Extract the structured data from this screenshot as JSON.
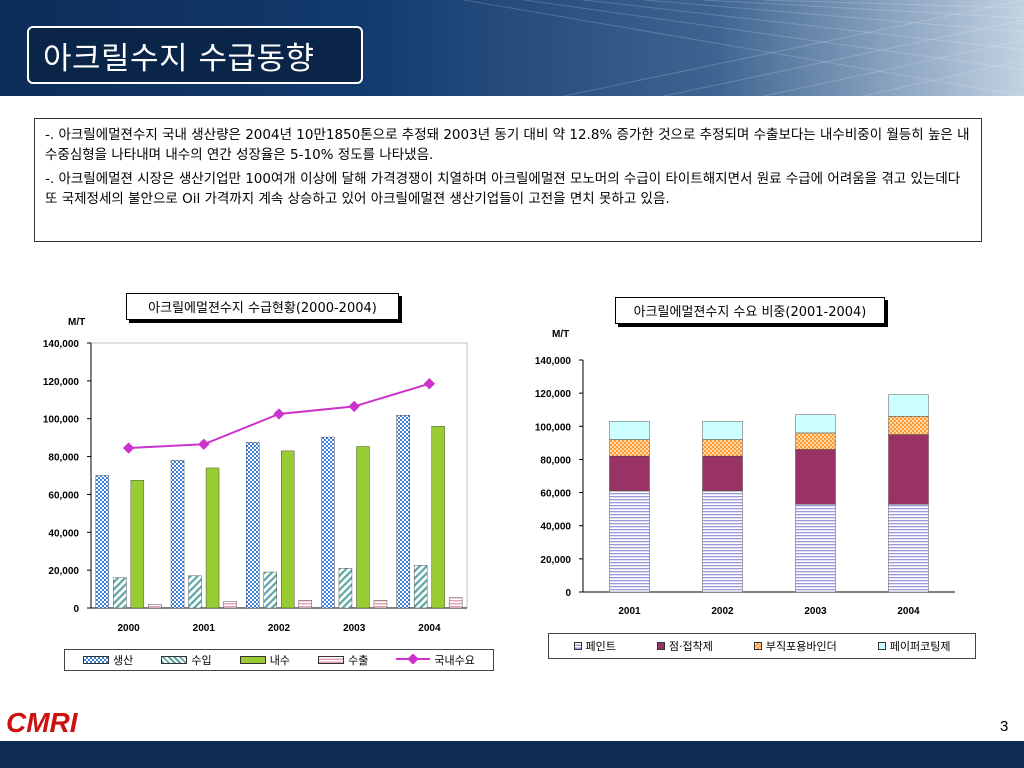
{
  "title": "아크릴수지 수급동향",
  "description": [
    "-. 아크릴에멀젼수지 국내 생산량은 2004년 10만1850톤으로 추정돼 2003년 동기 대비 약 12.8% 증가한 것으로 추정되며 수출보다는 내수비중이 월등히 높은 내수중심형을 나타내며  내수의 연간 성장율은 5-10% 정도를 나타냈음.",
    "-. 아크릴에멀젼 시장은 생산기업만 100여개 이상에 달해 가격경쟁이 치열하며 아크릴에멀젼 모노머의 수급이 타이트해지면서 원료 수급에 어려움을 겪고 있는데다 또 국제정세의 불안으로 Oil 가격까지 계속 상승하고 있어 아크릴에멀젼 생산기업들이 고전을 면치 못하고 있음."
  ],
  "logo_text": "CMRI",
  "page_number": "3",
  "chart_data": [
    {
      "type": "bar",
      "title": "아크릴에멀젼수지 수급현황(2000-2004)",
      "ylabel": "M/T",
      "ylim": [
        0,
        140000
      ],
      "yticks": [
        "0",
        "20,000",
        "40,000",
        "60,000",
        "80,000",
        "100,000",
        "120,000",
        "140,000"
      ],
      "categories": [
        "2000",
        "2001",
        "2002",
        "2003",
        "2004"
      ],
      "series": [
        {
          "name": "생산",
          "kind": "bar",
          "color": "#3d7fd4",
          "values": [
            70000,
            78000,
            87500,
            90300,
            101850
          ]
        },
        {
          "name": "수입",
          "kind": "bar",
          "color": "#5aa7a4",
          "values": [
            16000,
            17000,
            19000,
            21000,
            22500
          ]
        },
        {
          "name": "내수",
          "kind": "bar",
          "color": "#99cc33",
          "values": [
            67500,
            74000,
            83000,
            85300,
            96000
          ]
        },
        {
          "name": "수출",
          "kind": "bar",
          "color": "#e6a0b4",
          "values": [
            2000,
            3500,
            4000,
            4000,
            5500
          ]
        },
        {
          "name": "국내수요",
          "kind": "line",
          "color": "#cc33cc",
          "values": [
            84500,
            86500,
            102500,
            106500,
            118500
          ]
        }
      ],
      "legend_position": "bottom"
    },
    {
      "type": "bar",
      "stacked": true,
      "title": "아크릴에멀젼수지 수요 비중(2001-2004)",
      "ylabel": "M/T",
      "ylim": [
        0,
        140000
      ],
      "yticks": [
        "0",
        "20,000",
        "40,000",
        "60,000",
        "80,000",
        "100,000",
        "120,000",
        "140,000"
      ],
      "categories": [
        "2001",
        "2002",
        "2003",
        "2004"
      ],
      "series": [
        {
          "name": "페인트",
          "color": "#c8c8f0",
          "values": [
            61000,
            61000,
            53000,
            53000
          ]
        },
        {
          "name": "점·접착제",
          "color": "#993366",
          "values": [
            21000,
            21000,
            33000,
            42000
          ]
        },
        {
          "name": "부직포용바인더",
          "color": "#ff9933",
          "values": [
            10000,
            10000,
            10000,
            11000
          ]
        },
        {
          "name": "페이퍼코팅제",
          "color": "#ccffff",
          "values": [
            11000,
            11000,
            11000,
            13000
          ]
        }
      ],
      "legend_position": "bottom"
    }
  ]
}
